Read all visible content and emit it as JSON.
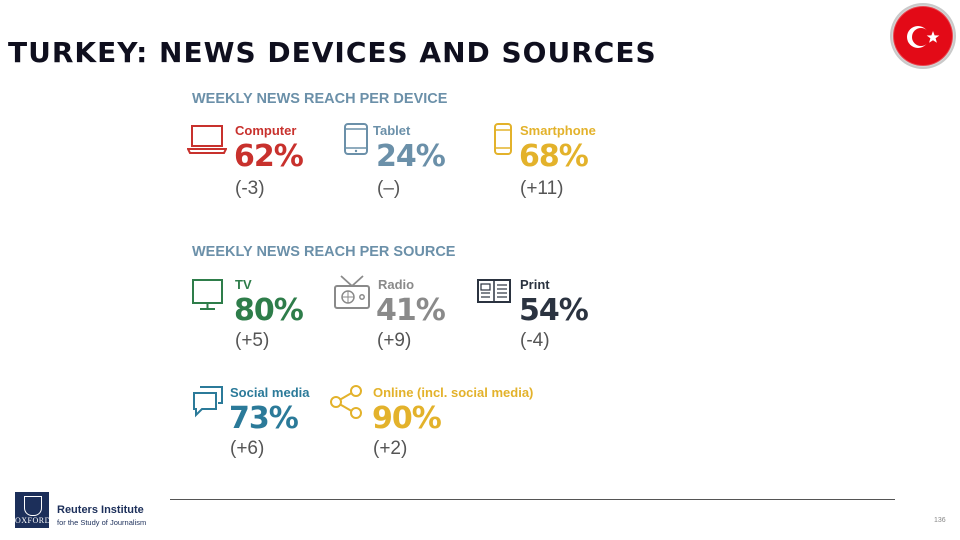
{
  "title": "TURKEY: NEWS DEVICES AND SOURCES",
  "device_section": {
    "heading": "WEEKLY NEWS REACH PER DEVICE",
    "items": [
      {
        "icon": "computer-icon",
        "label": "Computer",
        "value": "62%",
        "change": "(-3)",
        "color": "#c8312d"
      },
      {
        "icon": "tablet-icon",
        "label": "Tablet",
        "value": "24%",
        "change": "(–)",
        "color": "#6b90a9"
      },
      {
        "icon": "smartphone-icon",
        "label": "Smartphone",
        "value": "68%",
        "change": "(+11)",
        "color": "#e3b22b"
      }
    ]
  },
  "source_section": {
    "heading": "WEEKLY NEWS REACH PER SOURCE",
    "items": [
      {
        "icon": "tv-icon",
        "label": "TV",
        "value": "80%",
        "change": "(+5)",
        "color": "#2e7d4a"
      },
      {
        "icon": "radio-icon",
        "label": "Radio",
        "value": "41%",
        "change": "(+9)",
        "color": "#8a8a8a"
      },
      {
        "icon": "print-icon",
        "label": "Print",
        "value": "54%",
        "change": "(-4)",
        "color": "#2b3340"
      },
      {
        "icon": "social-media-icon",
        "label": "Social media",
        "value": "73%",
        "change": "(+6)",
        "color": "#2b7a99"
      },
      {
        "icon": "share-icon",
        "label": "Online (incl. social media)",
        "value": "90%",
        "change": "(+2)",
        "color": "#e3b22b"
      }
    ]
  },
  "footer": {
    "crest_text": "OXFORD",
    "institute_name": "Reuters Institute",
    "institute_tagline": "for the Study of Journalism",
    "page_number": "136"
  },
  "flag": {
    "icon": "turkey-flag-icon",
    "color": "#e30a17"
  }
}
